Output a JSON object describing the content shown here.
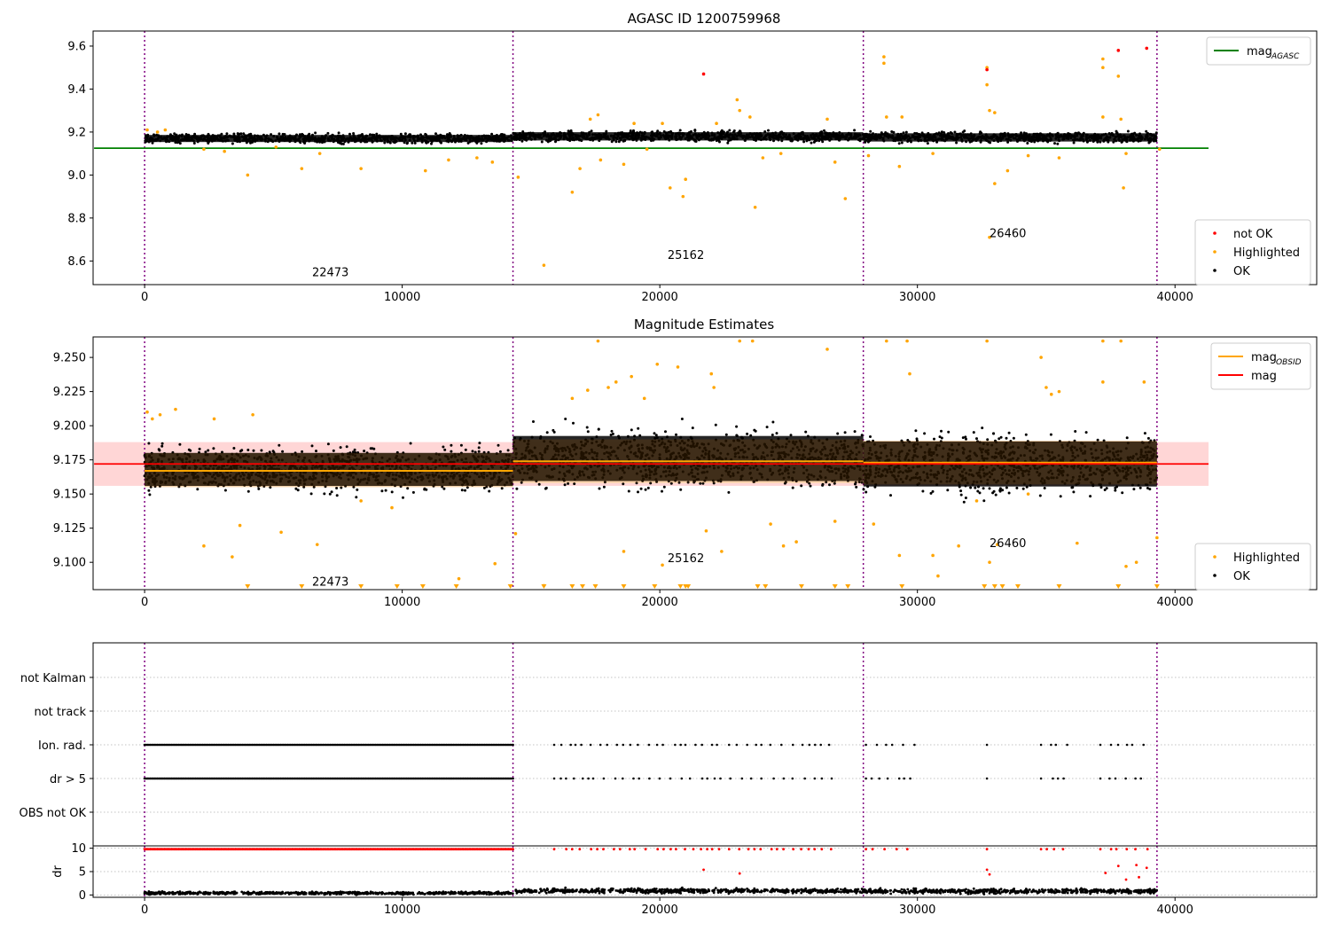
{
  "colors": {
    "ok": "#000000",
    "highlighted": "#ffa500",
    "not_ok": "#ff0000",
    "mag_agasc": "#008000",
    "mag_obsid": "#ffa500",
    "mag": "#ff0000",
    "mag_band": "#ffd6d6",
    "obsid_band": "#ffe4c4",
    "obsid_divider": "#800080",
    "grid": "#b0b0b0"
  },
  "chart_data": [
    {
      "type": "scatter",
      "title": "AGASC ID 1200759968",
      "xlim": [
        -2000,
        45500
      ],
      "ylim": [
        8.49,
        9.67
      ],
      "xticks": [
        0,
        10000,
        20000,
        30000,
        40000
      ],
      "xtick_labels": [
        "0",
        "10000",
        "20000",
        "30000",
        "40000"
      ],
      "yticks": [
        8.6,
        8.8,
        9.0,
        9.2,
        9.4,
        9.6
      ],
      "ytick_labels": [
        "8.6",
        "8.8",
        "9.0",
        "9.2",
        "9.4",
        "9.6"
      ],
      "legend_upper": {
        "placement": "top-right",
        "entries": [
          {
            "label": "mag",
            "sub": "AGASC",
            "color": "#008000"
          }
        ]
      },
      "legend_lower": {
        "placement": "bottom-right",
        "entries": [
          {
            "label": "not OK",
            "color": "#ff0000"
          },
          {
            "label": "Highlighted",
            "color": "#ffa500"
          },
          {
            "label": "OK",
            "color": "#000000"
          }
        ]
      },
      "obsids": [
        {
          "label": "22473",
          "start": 0,
          "end": 14300,
          "x": 6500,
          "y": 8.53
        },
        {
          "label": "25162",
          "start": 14300,
          "end": 27900,
          "x": 20300,
          "y": 8.61
        },
        {
          "label": "26460",
          "start": 27900,
          "end": 39300,
          "x": 32800,
          "y": 8.71
        }
      ],
      "dividers": [
        0,
        14300,
        27900,
        39300
      ],
      "mag_agasc": 9.125,
      "mag_agasc_xrange": [
        0,
        41300
      ],
      "ok_band": [
        {
          "x0": 0,
          "x1": 14300,
          "center": 9.17,
          "spread": 0.03
        },
        {
          "x0": 14300,
          "x1": 27900,
          "center": 9.18,
          "spread": 0.035
        },
        {
          "x0": 27900,
          "x1": 39300,
          "center": 9.175,
          "spread": 0.035
        }
      ],
      "highlighted": [
        [
          100,
          9.21
        ],
        [
          500,
          9.2
        ],
        [
          800,
          9.21
        ],
        [
          2300,
          9.12
        ],
        [
          3100,
          9.11
        ],
        [
          4000,
          9.0
        ],
        [
          5100,
          9.13
        ],
        [
          6100,
          9.03
        ],
        [
          6800,
          9.1
        ],
        [
          8400,
          9.03
        ],
        [
          10900,
          9.02
        ],
        [
          11800,
          9.07
        ],
        [
          12900,
          9.08
        ],
        [
          13500,
          9.06
        ],
        [
          14500,
          8.99
        ],
        [
          15500,
          8.58
        ],
        [
          16600,
          8.92
        ],
        [
          16900,
          9.03
        ],
        [
          17300,
          9.26
        ],
        [
          17600,
          9.28
        ],
        [
          17700,
          9.07
        ],
        [
          18600,
          9.05
        ],
        [
          19000,
          9.24
        ],
        [
          19500,
          9.12
        ],
        [
          20100,
          9.24
        ],
        [
          20400,
          8.94
        ],
        [
          20900,
          8.9
        ],
        [
          21000,
          8.98
        ],
        [
          22200,
          9.24
        ],
        [
          23000,
          9.35
        ],
        [
          23100,
          9.3
        ],
        [
          23500,
          9.27
        ],
        [
          23700,
          8.85
        ],
        [
          24000,
          9.08
        ],
        [
          24700,
          9.1
        ],
        [
          26500,
          9.26
        ],
        [
          26800,
          9.06
        ],
        [
          27200,
          8.89
        ],
        [
          28100,
          9.09
        ],
        [
          28700,
          9.55
        ],
        [
          28700,
          9.52
        ],
        [
          28800,
          9.27
        ],
        [
          29300,
          9.04
        ],
        [
          29400,
          9.27
        ],
        [
          30600,
          9.1
        ],
        [
          32700,
          9.5
        ],
        [
          32700,
          9.42
        ],
        [
          32800,
          9.3
        ],
        [
          32800,
          8.71
        ],
        [
          33000,
          8.96
        ],
        [
          33000,
          9.29
        ],
        [
          33500,
          9.02
        ],
        [
          34300,
          9.09
        ],
        [
          35500,
          9.08
        ],
        [
          37200,
          9.54
        ],
        [
          37200,
          9.5
        ],
        [
          37200,
          9.27
        ],
        [
          37800,
          9.46
        ],
        [
          37900,
          9.26
        ],
        [
          38000,
          8.94
        ],
        [
          38100,
          9.1
        ],
        [
          39400,
          9.12
        ]
      ],
      "not_ok": [
        [
          21700,
          9.47
        ],
        [
          32700,
          9.49
        ],
        [
          37800,
          9.58
        ],
        [
          38900,
          9.59
        ]
      ]
    },
    {
      "type": "scatter",
      "title": "Magnitude Estimates",
      "xlim": [
        -2000,
        45500
      ],
      "ylim": [
        9.08,
        9.265
      ],
      "xticks": [
        0,
        10000,
        20000,
        30000,
        40000
      ],
      "xtick_labels": [
        "0",
        "10000",
        "20000",
        "30000",
        "40000"
      ],
      "yticks": [
        9.1,
        9.125,
        9.15,
        9.175,
        9.2,
        9.225,
        9.25
      ],
      "ytick_labels": [
        "9.100",
        "9.125",
        "9.150",
        "9.175",
        "9.200",
        "9.225",
        "9.250"
      ],
      "legend_upper": {
        "placement": "top-right",
        "entries": [
          {
            "label": "mag",
            "sub": "OBSID",
            "color": "#ffa500"
          },
          {
            "label": "mag",
            "sub": "",
            "color": "#ff0000"
          }
        ]
      },
      "legend_lower": {
        "placement": "bottom-right",
        "entries": [
          {
            "label": "Highlighted",
            "color": "#ffa500"
          },
          {
            "label": "OK",
            "color": "#000000"
          }
        ]
      },
      "obsids": [
        {
          "label": "22473",
          "x": 6500,
          "y": 9.083
        },
        {
          "label": "25162",
          "x": 20300,
          "y": 9.1
        },
        {
          "label": "26460",
          "x": 32800,
          "y": 9.111
        }
      ],
      "dividers": [
        0,
        14300,
        27900,
        39300
      ],
      "mag": 9.172,
      "mag_band": [
        9.156,
        9.188
      ],
      "mag_xrange": [
        0,
        41300
      ],
      "mag_obsid": [
        {
          "x0": 0,
          "x1": 14300,
          "value": 9.167,
          "band": [
            9.155,
            9.18
          ]
        },
        {
          "x0": 14300,
          "x1": 27900,
          "value": 9.174,
          "band": [
            9.158,
            9.19
          ]
        },
        {
          "x0": 27900,
          "x1": 39300,
          "value": 9.173,
          "band": [
            9.157,
            9.189
          ]
        }
      ],
      "ok_band": [
        {
          "x0": 0,
          "x1": 14300,
          "center": 9.168,
          "spread": 0.022
        },
        {
          "x0": 14300,
          "x1": 27900,
          "center": 9.176,
          "spread": 0.03
        },
        {
          "x0": 27900,
          "x1": 39300,
          "center": 9.172,
          "spread": 0.03
        }
      ],
      "highlighted": [
        [
          100,
          9.21
        ],
        [
          300,
          9.205
        ],
        [
          600,
          9.208
        ],
        [
          1200,
          9.212
        ],
        [
          2300,
          9.112
        ],
        [
          2700,
          9.205
        ],
        [
          3400,
          9.104
        ],
        [
          3700,
          9.127
        ],
        [
          4200,
          9.208
        ],
        [
          5300,
          9.122
        ],
        [
          6700,
          9.113
        ],
        [
          8400,
          9.145
        ],
        [
          9600,
          9.14
        ],
        [
          12200,
          9.088
        ],
        [
          13600,
          9.099
        ],
        [
          14400,
          9.121
        ],
        [
          15500,
          9.083
        ],
        [
          16600,
          9.22
        ],
        [
          17200,
          9.226
        ],
        [
          17600,
          9.262
        ],
        [
          18000,
          9.228
        ],
        [
          18300,
          9.232
        ],
        [
          18600,
          9.108
        ],
        [
          18900,
          9.236
        ],
        [
          19400,
          9.22
        ],
        [
          19900,
          9.245
        ],
        [
          20100,
          9.098
        ],
        [
          20700,
          9.243
        ],
        [
          21800,
          9.123
        ],
        [
          22000,
          9.238
        ],
        [
          22100,
          9.228
        ],
        [
          22400,
          9.108
        ],
        [
          23100,
          9.262
        ],
        [
          23600,
          9.262
        ],
        [
          24300,
          9.128
        ],
        [
          24800,
          9.112
        ],
        [
          25300,
          9.115
        ],
        [
          26500,
          9.256
        ],
        [
          26800,
          9.13
        ],
        [
          28300,
          9.128
        ],
        [
          28800,
          9.262
        ],
        [
          29300,
          9.105
        ],
        [
          29600,
          9.262
        ],
        [
          29700,
          9.238
        ],
        [
          30600,
          9.105
        ],
        [
          30800,
          9.09
        ],
        [
          31600,
          9.112
        ],
        [
          32300,
          9.145
        ],
        [
          32700,
          9.262
        ],
        [
          32800,
          9.1
        ],
        [
          33100,
          9.113
        ],
        [
          34300,
          9.15
        ],
        [
          34800,
          9.25
        ],
        [
          35000,
          9.228
        ],
        [
          35200,
          9.223
        ],
        [
          35500,
          9.225
        ],
        [
          36200,
          9.114
        ],
        [
          37200,
          9.262
        ],
        [
          37200,
          9.232
        ],
        [
          37900,
          9.262
        ],
        [
          38100,
          9.097
        ],
        [
          38500,
          9.1
        ],
        [
          38800,
          9.232
        ],
        [
          39300,
          9.118
        ]
      ],
      "below_axis": [
        4000,
        6100,
        8400,
        9800,
        10800,
        12100,
        14200,
        15500,
        16600,
        17000,
        17500,
        18600,
        19800,
        20800,
        21000,
        21100,
        23800,
        24100,
        25500,
        26800,
        27300,
        29400,
        32600,
        33000,
        33300,
        33900,
        35500,
        37800,
        39300
      ]
    },
    {
      "type": "scatter",
      "title": "",
      "xlim": [
        -2000,
        45500
      ],
      "ylabels": [
        "not Kalman",
        "not track",
        "Ion. rad.",
        "dr > 5",
        "OBS not OK"
      ],
      "dividers": [
        0,
        14300,
        27900,
        39300
      ],
      "flag_segments": [
        {
          "row": "Ion. rad.",
          "ranges": [
            [
              0,
              14300
            ],
            [
              15900,
              26700
            ],
            [
              28000,
              30000
            ],
            [
              32700,
              32900
            ],
            [
              34800,
              36000
            ],
            [
              37100,
              39000
            ]
          ]
        },
        {
          "row": "dr > 5",
          "ranges": [
            [
              0,
              14300
            ],
            [
              15900,
              26700
            ],
            [
              28000,
              30000
            ],
            [
              32700,
              32900
            ],
            [
              34800,
              36000
            ],
            [
              37100,
              39000
            ]
          ]
        }
      ]
    },
    {
      "type": "scatter",
      "title": "",
      "ylabel": "dr",
      "xlim": [
        -2000,
        45500
      ],
      "ylim": [
        -0.5,
        10.5
      ],
      "xticks": [
        0,
        10000,
        20000,
        30000,
        40000
      ],
      "xtick_labels": [
        "0",
        "10000",
        "20000",
        "30000",
        "40000"
      ],
      "yticks": [
        0,
        5,
        10
      ],
      "ytick_labels": [
        "0",
        "5",
        "10"
      ],
      "dividers": [
        0,
        14300,
        27900,
        39300
      ],
      "baseline": [
        {
          "x0": 0,
          "x1": 14300,
          "center": 0.4,
          "spread": 0.4
        },
        {
          "x0": 14300,
          "x1": 27900,
          "center": 0.9,
          "spread": 0.7
        },
        {
          "x0": 27900,
          "x1": 39300,
          "center": 0.8,
          "spread": 0.7
        }
      ],
      "clipped_ranges": [
        [
          0,
          14300
        ],
        [
          15900,
          26700
        ],
        [
          28000,
          30000
        ],
        [
          32700,
          32900
        ],
        [
          34800,
          36000
        ],
        [
          37100,
          39000
        ]
      ],
      "not_ok_points": [
        [
          21700,
          5.4
        ],
        [
          23100,
          4.6
        ],
        [
          32700,
          5.4
        ],
        [
          32800,
          4.4
        ],
        [
          37300,
          4.7
        ],
        [
          37800,
          6.2
        ],
        [
          38100,
          3.3
        ],
        [
          38500,
          6.4
        ],
        [
          38600,
          3.8
        ],
        [
          38900,
          5.8
        ]
      ]
    }
  ]
}
